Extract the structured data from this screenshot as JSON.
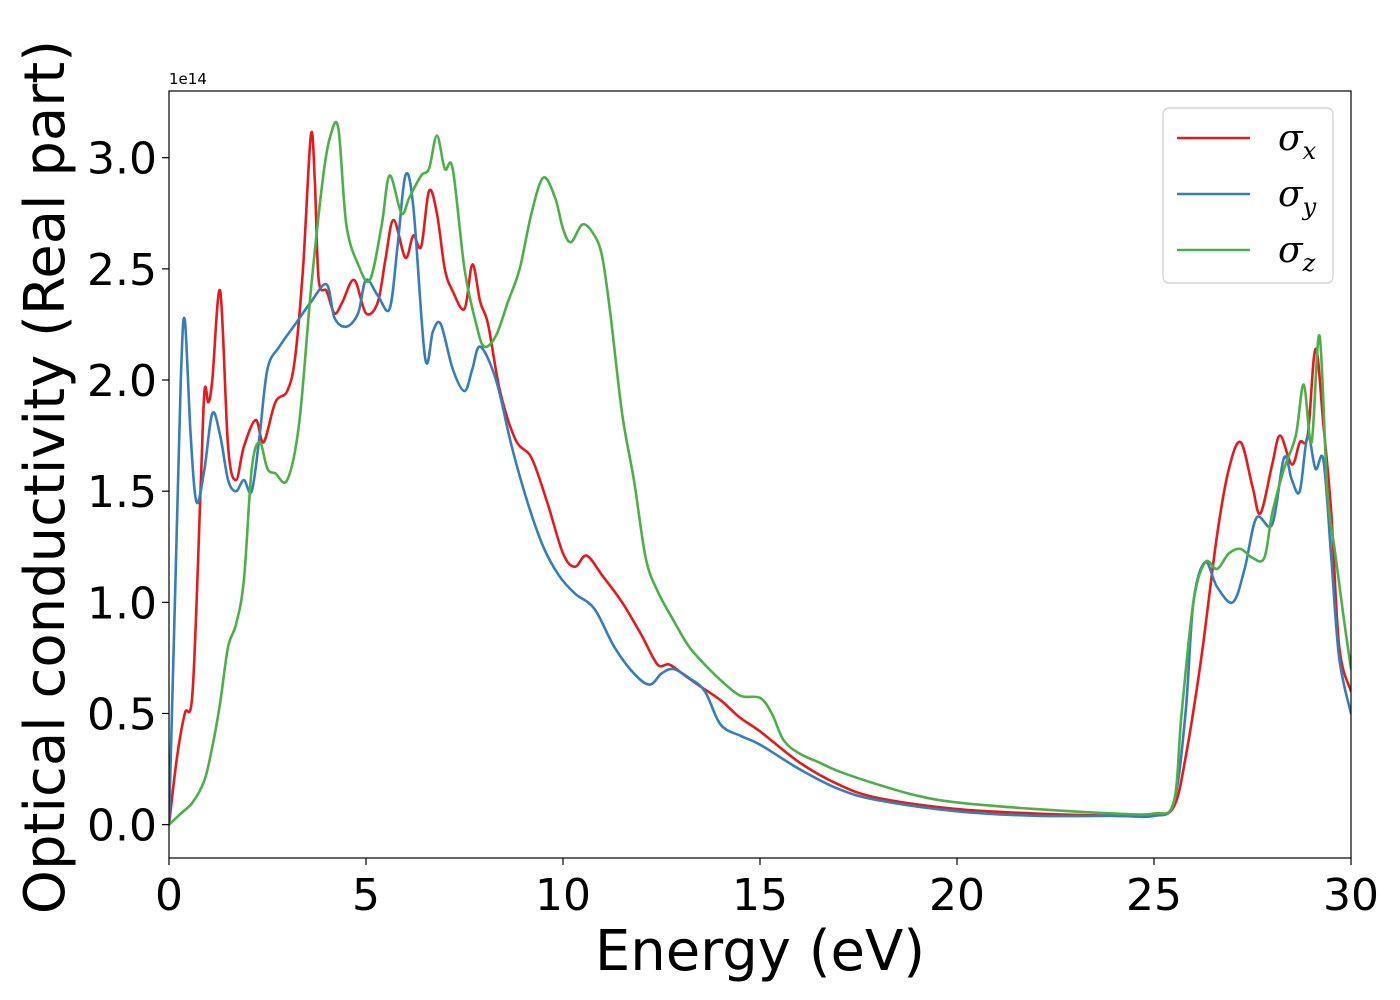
{
  "chart_data": {
    "type": "line",
    "xlabel": "Energy (eV)",
    "ylabel": "Optical conductivity (Real part)",
    "y_offset_label": "1e14",
    "xlim": [
      0,
      30
    ],
    "ylim": [
      -0.15,
      3.3
    ],
    "x_ticks": [
      0,
      5,
      10,
      15,
      20,
      25,
      30
    ],
    "x_tick_labels": [
      "0",
      "5",
      "10",
      "15",
      "20",
      "25",
      "30"
    ],
    "y_ticks": [
      0.0,
      0.5,
      1.0,
      1.5,
      2.0,
      2.5,
      3.0
    ],
    "y_tick_labels": [
      "0.0",
      "0.5",
      "1.0",
      "1.5",
      "2.0",
      "2.5",
      "3.0"
    ],
    "legend_position": "top-right",
    "series": [
      {
        "name": "σx",
        "symbol": "σ",
        "subscript": "x",
        "color": "#e41a1c",
        "x": [
          0.0,
          0.2,
          0.4,
          0.6,
          0.8,
          0.9,
          1.0,
          1.1,
          1.3,
          1.5,
          1.7,
          1.9,
          2.2,
          2.4,
          2.7,
          3.0,
          3.2,
          3.4,
          3.6,
          3.7,
          3.8,
          4.0,
          4.2,
          4.4,
          4.7,
          5.0,
          5.3,
          5.5,
          5.7,
          6.0,
          6.2,
          6.4,
          6.6,
          6.8,
          7.0,
          7.2,
          7.5,
          7.7,
          7.9,
          8.1,
          8.4,
          8.8,
          9.2,
          9.6,
          10.0,
          10.3,
          10.6,
          11.0,
          11.5,
          12.0,
          12.4,
          12.7,
          13.1,
          13.5,
          14.0,
          14.5,
          15.0,
          16.0,
          17.0,
          18.0,
          20.0,
          22.0,
          24.0,
          25.0,
          25.5,
          25.8,
          26.2,
          26.6,
          26.9,
          27.2,
          27.5,
          27.7,
          28.0,
          28.2,
          28.5,
          28.7,
          28.9,
          29.1,
          29.3,
          29.5,
          29.7,
          30.0
        ],
        "values": [
          0.0,
          0.3,
          0.5,
          0.6,
          1.5,
          1.95,
          1.9,
          2.0,
          2.4,
          1.7,
          1.55,
          1.7,
          1.82,
          1.72,
          1.9,
          1.95,
          2.1,
          2.5,
          3.1,
          2.9,
          2.45,
          2.4,
          2.3,
          2.35,
          2.45,
          2.3,
          2.35,
          2.55,
          2.72,
          2.55,
          2.65,
          2.6,
          2.85,
          2.75,
          2.5,
          2.4,
          2.32,
          2.52,
          2.35,
          2.25,
          1.95,
          1.73,
          1.65,
          1.45,
          1.22,
          1.16,
          1.21,
          1.12,
          1.0,
          0.85,
          0.72,
          0.72,
          0.67,
          0.62,
          0.56,
          0.48,
          0.42,
          0.28,
          0.18,
          0.12,
          0.07,
          0.05,
          0.04,
          0.04,
          0.08,
          0.3,
          0.75,
          1.3,
          1.6,
          1.72,
          1.52,
          1.4,
          1.62,
          1.75,
          1.62,
          1.72,
          1.75,
          2.14,
          1.8,
          1.4,
          0.8,
          0.6
        ]
      },
      {
        "name": "σy",
        "symbol": "σ",
        "subscript": "y",
        "color": "#377eb8",
        "x": [
          0.0,
          0.15,
          0.3,
          0.4,
          0.55,
          0.7,
          0.9,
          1.1,
          1.3,
          1.5,
          1.7,
          1.9,
          2.1,
          2.3,
          2.5,
          2.8,
          3.2,
          3.6,
          4.0,
          4.2,
          4.5,
          4.8,
          5.0,
          5.3,
          5.6,
          5.8,
          6.0,
          6.2,
          6.5,
          6.7,
          6.9,
          7.2,
          7.5,
          7.7,
          7.9,
          8.3,
          8.7,
          9.1,
          9.5,
          9.9,
          10.3,
          10.8,
          11.3,
          11.8,
          12.2,
          12.5,
          12.8,
          13.2,
          13.6,
          14.0,
          14.5,
          15.0,
          16.0,
          17.0,
          18.0,
          20.0,
          22.0,
          24.0,
          25.0,
          25.5,
          25.8,
          26.0,
          26.3,
          26.6,
          27.0,
          27.3,
          27.6,
          28.0,
          28.3,
          28.5,
          28.7,
          28.9,
          29.1,
          29.3,
          29.5,
          29.7,
          30.0
        ],
        "values": [
          0.0,
          1.0,
          2.0,
          2.27,
          1.75,
          1.45,
          1.6,
          1.85,
          1.75,
          1.55,
          1.5,
          1.55,
          1.5,
          1.75,
          2.05,
          2.15,
          2.25,
          2.35,
          2.43,
          2.28,
          2.24,
          2.3,
          2.45,
          2.38,
          2.32,
          2.6,
          2.92,
          2.78,
          2.1,
          2.22,
          2.25,
          2.05,
          1.95,
          2.05,
          2.15,
          2.0,
          1.7,
          1.45,
          1.25,
          1.12,
          1.04,
          0.97,
          0.8,
          0.68,
          0.63,
          0.68,
          0.7,
          0.66,
          0.6,
          0.45,
          0.4,
          0.36,
          0.25,
          0.16,
          0.11,
          0.06,
          0.04,
          0.04,
          0.04,
          0.1,
          0.5,
          1.0,
          1.18,
          1.07,
          1.0,
          1.15,
          1.38,
          1.35,
          1.65,
          1.55,
          1.5,
          1.75,
          1.6,
          1.64,
          1.2,
          0.75,
          0.5
        ]
      },
      {
        "name": "σz",
        "symbol": "σ",
        "subscript": "z",
        "color": "#4daf4a",
        "x": [
          0.0,
          0.3,
          0.6,
          0.9,
          1.1,
          1.3,
          1.5,
          1.7,
          1.9,
          2.1,
          2.3,
          2.5,
          2.7,
          3.0,
          3.3,
          3.6,
          3.9,
          4.1,
          4.3,
          4.5,
          4.8,
          5.1,
          5.4,
          5.6,
          5.9,
          6.1,
          6.4,
          6.6,
          6.8,
          7.0,
          7.2,
          7.5,
          7.8,
          8.0,
          8.3,
          8.6,
          8.9,
          9.2,
          9.5,
          9.8,
          10.0,
          10.2,
          10.5,
          10.8,
          11.0,
          11.2,
          11.5,
          11.8,
          12.1,
          12.4,
          12.8,
          13.2,
          13.6,
          14.0,
          14.5,
          15.0,
          15.3,
          15.6,
          16.0,
          16.5,
          17.0,
          18.0,
          19.0,
          20.0,
          22.0,
          24.0,
          25.0,
          25.5,
          25.7,
          26.0,
          26.3,
          26.6,
          26.9,
          27.2,
          27.5,
          27.8,
          28.0,
          28.3,
          28.6,
          28.8,
          29.0,
          29.2,
          29.4,
          29.6,
          29.8,
          30.0
        ],
        "values": [
          0.0,
          0.05,
          0.1,
          0.2,
          0.35,
          0.55,
          0.8,
          0.9,
          1.1,
          1.6,
          1.72,
          1.6,
          1.58,
          1.55,
          1.8,
          2.4,
          2.9,
          3.1,
          3.13,
          2.7,
          2.52,
          2.45,
          2.7,
          2.92,
          2.75,
          2.82,
          2.92,
          2.95,
          3.1,
          2.95,
          2.95,
          2.5,
          2.25,
          2.15,
          2.2,
          2.35,
          2.5,
          2.75,
          2.91,
          2.82,
          2.68,
          2.62,
          2.7,
          2.65,
          2.55,
          2.3,
          1.85,
          1.55,
          1.2,
          1.05,
          0.92,
          0.8,
          0.72,
          0.65,
          0.58,
          0.57,
          0.5,
          0.38,
          0.32,
          0.28,
          0.24,
          0.18,
          0.13,
          0.1,
          0.07,
          0.05,
          0.05,
          0.1,
          0.5,
          1.0,
          1.18,
          1.15,
          1.22,
          1.24,
          1.2,
          1.2,
          1.4,
          1.6,
          1.75,
          1.98,
          1.72,
          2.2,
          1.5,
          1.22,
          0.95,
          0.7
        ]
      }
    ]
  }
}
